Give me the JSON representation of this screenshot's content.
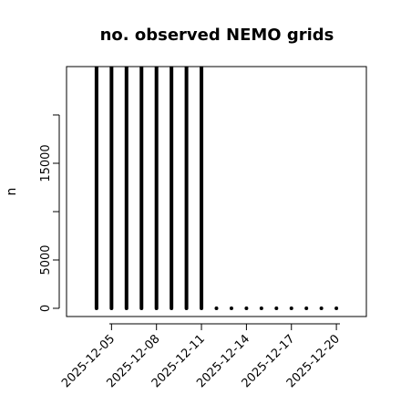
{
  "chart_data": {
    "type": "bar",
    "title": "no. observed NEMO grids",
    "y_label": "n",
    "x": [
      "2025-12-04",
      "2025-12-05",
      "2025-12-06",
      "2025-12-07",
      "2025-12-08",
      "2025-12-09",
      "2025-12-10",
      "2025-12-11",
      "2025-12-12",
      "2025-12-13",
      "2025-12-14",
      "2025-12-15",
      "2025-12-16",
      "2025-12-17",
      "2025-12-18",
      "2025-12-19",
      "2025-12-20"
    ],
    "values": [
      25000,
      25000,
      25000,
      25000,
      25000,
      25000,
      25000,
      25000,
      0,
      0,
      0,
      0,
      0,
      0,
      0,
      0,
      0
    ],
    "color": "#000000",
    "xlim": [
      "2025-12-02",
      "2025-12-22"
    ],
    "xticks": [
      "2025-12-05",
      "2025-12-08",
      "2025-12-11",
      "2025-12-14",
      "2025-12-17",
      "2025-12-20"
    ],
    "ylim": [
      -850,
      25000
    ],
    "yticks": [
      0,
      5000,
      {
        "value": 10000,
        "label": null
      },
      15000,
      {
        "value": 20000,
        "label": null
      }
    ]
  }
}
